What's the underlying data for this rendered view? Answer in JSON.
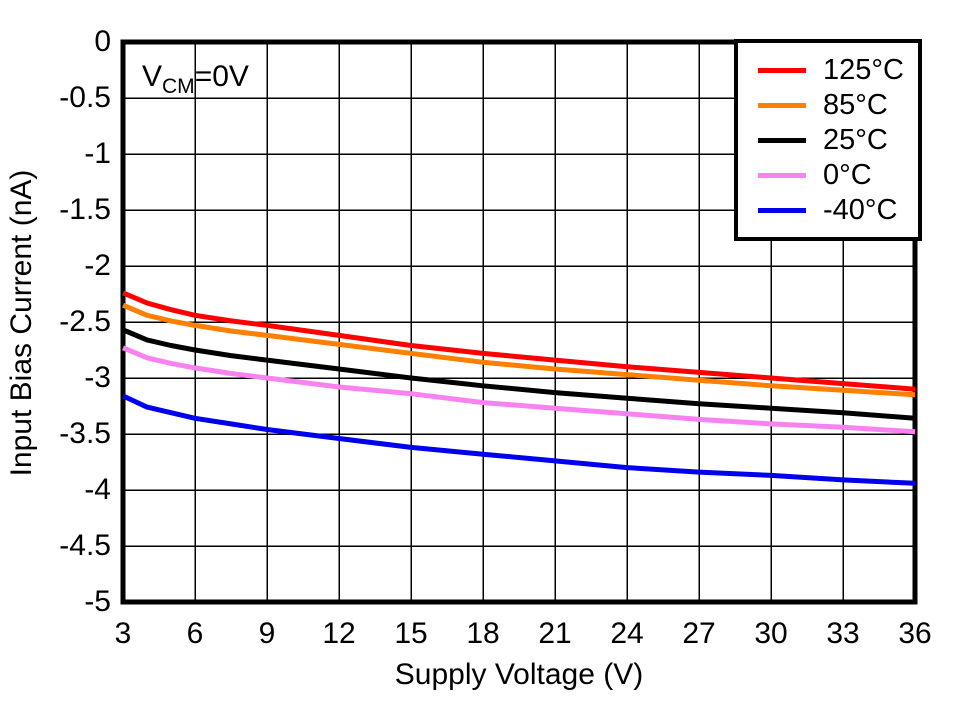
{
  "figure": {
    "background": "#ffffff",
    "border_color": "#000000",
    "grid_color": "#000000"
  },
  "chart_data": {
    "type": "line",
    "title": "",
    "xlabel": "Supply Voltage (V)",
    "ylabel": "Input Bias Current (nA)",
    "annotation": {
      "base": "V",
      "sub": "CM",
      "rest": "=0V"
    },
    "xlim": [
      3,
      36
    ],
    "ylim": [
      -5,
      0
    ],
    "grid": true,
    "legend_position": "top-right",
    "xtick_values": [
      3,
      6,
      9,
      12,
      15,
      18,
      21,
      24,
      27,
      30,
      33,
      36
    ],
    "xtick_labels": [
      "3",
      "6",
      "9",
      "12",
      "15",
      "18",
      "21",
      "24",
      "27",
      "30",
      "33",
      "36"
    ],
    "ytick_values": [
      0,
      -0.5,
      -1,
      -1.5,
      -2,
      -2.5,
      -3,
      -3.5,
      -4,
      -4.5,
      -5
    ],
    "ytick_labels": [
      "0",
      "-0.5",
      "-1",
      "-1.5",
      "-2",
      "-2.5",
      "-3",
      "-3.5",
      "-4",
      "-4.5",
      "-5"
    ],
    "x": [
      3,
      4,
      5,
      6,
      7.5,
      9,
      12,
      15,
      18,
      21,
      24,
      27,
      30,
      33,
      36
    ],
    "series": [
      {
        "name": "125°C",
        "color": "#FF0000",
        "values": [
          -2.24,
          -2.33,
          -2.39,
          -2.44,
          -2.49,
          -2.53,
          -2.62,
          -2.71,
          -2.78,
          -2.84,
          -2.9,
          -2.95,
          -3.0,
          -3.05,
          -3.1
        ]
      },
      {
        "name": "85°C",
        "color": "#FF8000",
        "values": [
          -2.35,
          -2.44,
          -2.49,
          -2.53,
          -2.58,
          -2.62,
          -2.7,
          -2.78,
          -2.86,
          -2.92,
          -2.97,
          -3.02,
          -3.07,
          -3.11,
          -3.15
        ]
      },
      {
        "name": "25°C",
        "color": "#000000",
        "values": [
          -2.57,
          -2.66,
          -2.71,
          -2.75,
          -2.8,
          -2.84,
          -2.92,
          -3.0,
          -3.07,
          -3.13,
          -3.18,
          -3.23,
          -3.27,
          -3.31,
          -3.36
        ]
      },
      {
        "name": "0°C",
        "color": "#F883F0",
        "values": [
          -2.73,
          -2.82,
          -2.87,
          -2.91,
          -2.96,
          -3.0,
          -3.08,
          -3.14,
          -3.22,
          -3.27,
          -3.32,
          -3.37,
          -3.41,
          -3.44,
          -3.48
        ]
      },
      {
        "name": "-40°C",
        "color": "#0000EE",
        "values": [
          -3.16,
          -3.26,
          -3.31,
          -3.36,
          -3.41,
          -3.46,
          -3.54,
          -3.62,
          -3.68,
          -3.74,
          -3.8,
          -3.84,
          -3.87,
          -3.91,
          -3.94
        ]
      }
    ]
  }
}
